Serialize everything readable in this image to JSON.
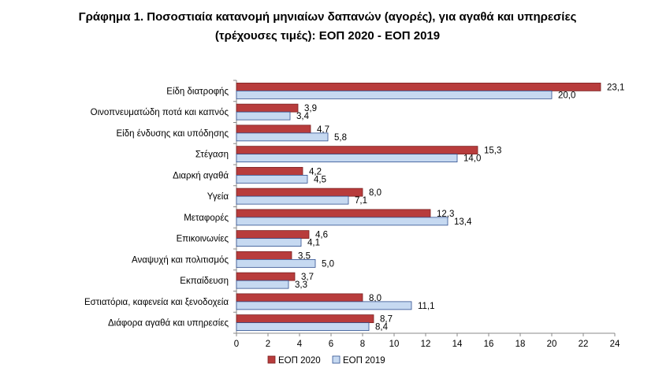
{
  "title_line1": "Γράφημα 1. Ποσοστιαία κατανομή μηνιαίων δαπανών (αγορές), για αγαθά και υπηρεσίες",
  "title_line2": "(τρέχουσες τιμές): ΕΟΠ 2020 - ΕΟΠ 2019",
  "chart_data": {
    "type": "bar",
    "orientation": "horizontal",
    "categories": [
      "Είδη διατροφής",
      "Οινοπνευματώδη ποτά και καπνός",
      "Είδη ένδυσης και υπόδησης",
      "Στέγαση",
      "Διαρκή αγαθά",
      "Υγεία",
      "Μεταφορές",
      "Επικοινωνίες",
      "Αναψυχή και πολιτισμός",
      "Εκπαίδευση",
      "Εστιατόρια, καφενεία  και ξενοδοχεία",
      "Διάφορα αγαθά και υπηρεσίες"
    ],
    "series": [
      {
        "name": "ΕΟΠ 2020",
        "color": "#B83C3C",
        "values": [
          23.1,
          3.9,
          4.7,
          15.3,
          4.2,
          8.0,
          12.3,
          4.6,
          3.5,
          3.7,
          8.0,
          8.7
        ],
        "labels": [
          "23,1",
          "3,9",
          "4,7",
          "15,3",
          "4,2",
          "8,0",
          "12,3",
          "4,6",
          "3,5",
          "3,7",
          "8,0",
          "8,7"
        ]
      },
      {
        "name": "ΕΟΠ 2019",
        "color": "#C6D9F1",
        "values": [
          20.0,
          3.4,
          5.8,
          14.0,
          4.5,
          7.1,
          13.4,
          4.1,
          5.0,
          3.3,
          11.1,
          8.4
        ],
        "labels": [
          "20,0",
          "3,4",
          "5,8",
          "14,0",
          "4,5",
          "7,1",
          "13,4",
          "4,1",
          "5,0",
          "3,3",
          "11,1",
          "8,4"
        ]
      }
    ],
    "xlim": [
      0,
      24
    ],
    "xticks": [
      "0",
      "2",
      "4",
      "6",
      "8",
      "10",
      "12",
      "14",
      "16",
      "18",
      "20",
      "22",
      "24"
    ],
    "grid": false,
    "legend_position": "bottom"
  }
}
